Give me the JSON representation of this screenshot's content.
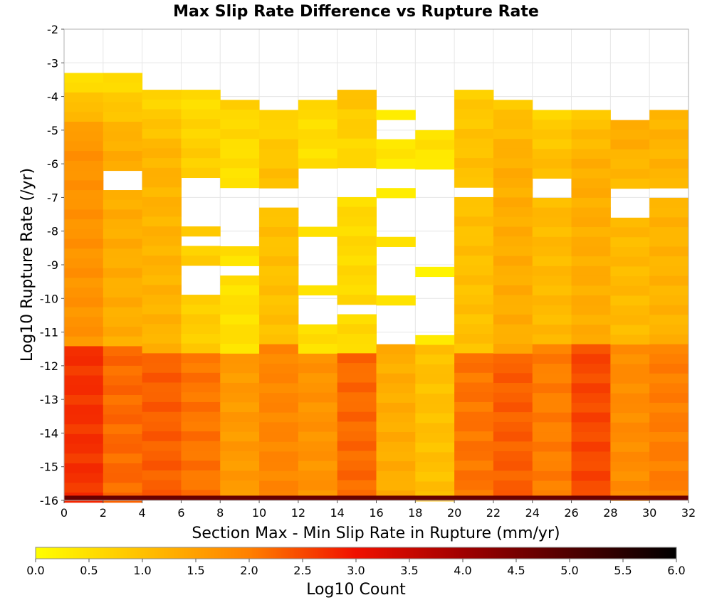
{
  "chart_data": {
    "type": "heatmap",
    "title": "Max Slip Rate Difference vs Rupture Rate",
    "xlabel": "Section Max - Min Slip Rate in Rupture (mm/yr)",
    "ylabel": "Log10 Rupture Rate (/yr)",
    "xlim": [
      0,
      32
    ],
    "ylim": [
      -16,
      -2
    ],
    "x_ticks": [
      "0",
      "2",
      "4",
      "6",
      "8",
      "10",
      "12",
      "14",
      "16",
      "18",
      "20",
      "22",
      "24",
      "26",
      "28",
      "30",
      "32"
    ],
    "y_ticks": [
      "-2",
      "-3",
      "-4",
      "-5",
      "-6",
      "-7",
      "-8",
      "-9",
      "-10",
      "-11",
      "-12",
      "-13",
      "-14",
      "-15",
      "-16"
    ],
    "x_bin_width": 2,
    "y_bin_height": 0.29,
    "grid": true,
    "colorbar": {
      "label": "Log10 Count",
      "range": [
        0.0,
        6.0
      ],
      "ticks": [
        "0.0",
        "0.5",
        "1.0",
        "1.5",
        "2.0",
        "2.5",
        "3.0",
        "3.5",
        "4.0",
        "4.5",
        "5.0",
        "5.5",
        "6.0"
      ],
      "stops": [
        [
          0.0,
          "#ffff00"
        ],
        [
          1.0,
          "#ffc000"
        ],
        [
          2.0,
          "#ff8000"
        ],
        [
          3.0,
          "#f01000"
        ],
        [
          4.0,
          "#a00000"
        ],
        [
          5.0,
          "#500000"
        ],
        [
          6.0,
          "#000000"
        ]
      ]
    },
    "columns": [
      {
        "x_start": 0,
        "y_top": -3.3,
        "y_bottom": -16.0,
        "top_value": 0.4,
        "mid_value": 1.7,
        "low_value": 2.7,
        "gaps": []
      },
      {
        "x_start": 2,
        "y_top": -3.3,
        "y_bottom": -16.0,
        "top_value": 0.5,
        "mid_value": 1.3,
        "low_value": 2.2,
        "gaps": [
          [
            -6.2,
            -6.7
          ]
        ]
      },
      {
        "x_start": 4,
        "y_top": -3.8,
        "y_bottom": -16.0,
        "top_value": 0.6,
        "mid_value": 1.2,
        "low_value": 2.3,
        "gaps": []
      },
      {
        "x_start": 6,
        "y_top": -3.8,
        "y_bottom": -16.0,
        "top_value": 0.5,
        "mid_value": 0.8,
        "low_value": 2.1,
        "gaps": [
          [
            -6.5,
            -7.9
          ],
          [
            -8.2,
            -8.5
          ],
          [
            -9.0,
            -9.9
          ]
        ]
      },
      {
        "x_start": 8,
        "y_top": -4.1,
        "y_bottom": -16.0,
        "top_value": 0.7,
        "mid_value": 0.5,
        "low_value": 1.6,
        "gaps": [
          [
            -6.7,
            -8.4
          ],
          [
            -9.0,
            -9.3
          ]
        ]
      },
      {
        "x_start": 10,
        "y_top": -4.4,
        "y_bottom": -16.0,
        "top_value": 0.6,
        "mid_value": 1.0,
        "low_value": 1.9,
        "gaps": [
          [
            -6.7,
            -7.3
          ]
        ]
      },
      {
        "x_start": 12,
        "y_top": -4.1,
        "y_bottom": -16.0,
        "top_value": 0.6,
        "mid_value": 0.5,
        "low_value": 1.7,
        "gaps": [
          [
            -6.2,
            -7.9
          ],
          [
            -8.2,
            -9.6
          ],
          [
            -9.9,
            -10.7
          ]
        ]
      },
      {
        "x_start": 14,
        "y_top": -3.8,
        "y_bottom": -16.0,
        "top_value": 1.0,
        "mid_value": 0.6,
        "low_value": 2.2,
        "gaps": [
          [
            -6.2,
            -7.0
          ],
          [
            -10.1,
            -10.4
          ]
        ]
      },
      {
        "x_start": 16,
        "y_top": -4.4,
        "y_bottom": -16.0,
        "top_value": 0.3,
        "mid_value": 0.4,
        "low_value": 1.3,
        "gaps": [
          [
            -4.7,
            -5.3
          ],
          [
            -6.2,
            -6.7
          ],
          [
            -7.0,
            -8.2
          ],
          [
            -8.5,
            -9.9
          ],
          [
            -10.1,
            -11.3
          ]
        ]
      },
      {
        "x_start": 18,
        "y_top": -5.0,
        "y_bottom": -16.0,
        "top_value": 0.5,
        "mid_value": 0.3,
        "low_value": 1.0,
        "gaps": [
          [
            -6.2,
            -9.0
          ],
          [
            -9.3,
            -11.0
          ]
        ]
      },
      {
        "x_start": 20,
        "y_top": -3.8,
        "y_bottom": -16.0,
        "top_value": 0.8,
        "mid_value": 1.0,
        "low_value": 2.1,
        "gaps": [
          [
            -6.7,
            -7.0
          ]
        ]
      },
      {
        "x_start": 22,
        "y_top": -4.1,
        "y_bottom": -16.0,
        "top_value": 0.9,
        "mid_value": 1.3,
        "low_value": 2.3,
        "gaps": []
      },
      {
        "x_start": 24,
        "y_top": -4.4,
        "y_bottom": -16.0,
        "top_value": 0.7,
        "mid_value": 1.1,
        "low_value": 2.0,
        "gaps": [
          [
            -6.5,
            -7.0
          ]
        ]
      },
      {
        "x_start": 26,
        "y_top": -4.4,
        "y_bottom": -16.0,
        "top_value": 0.9,
        "mid_value": 1.3,
        "low_value": 2.5,
        "gaps": []
      },
      {
        "x_start": 28,
        "y_top": -4.7,
        "y_bottom": -16.0,
        "top_value": 1.4,
        "mid_value": 1.1,
        "low_value": 1.8,
        "gaps": [
          [
            -6.7,
            -7.6
          ]
        ]
      },
      {
        "x_start": 30,
        "y_top": -4.4,
        "y_bottom": -16.0,
        "top_value": 1.2,
        "mid_value": 1.2,
        "low_value": 2.0,
        "gaps": [
          [
            -6.7,
            -7.0
          ]
        ]
      }
    ],
    "bottom_row": {
      "y_top": -16.0,
      "y_bottom": -15.86,
      "value": 4.7
    }
  }
}
